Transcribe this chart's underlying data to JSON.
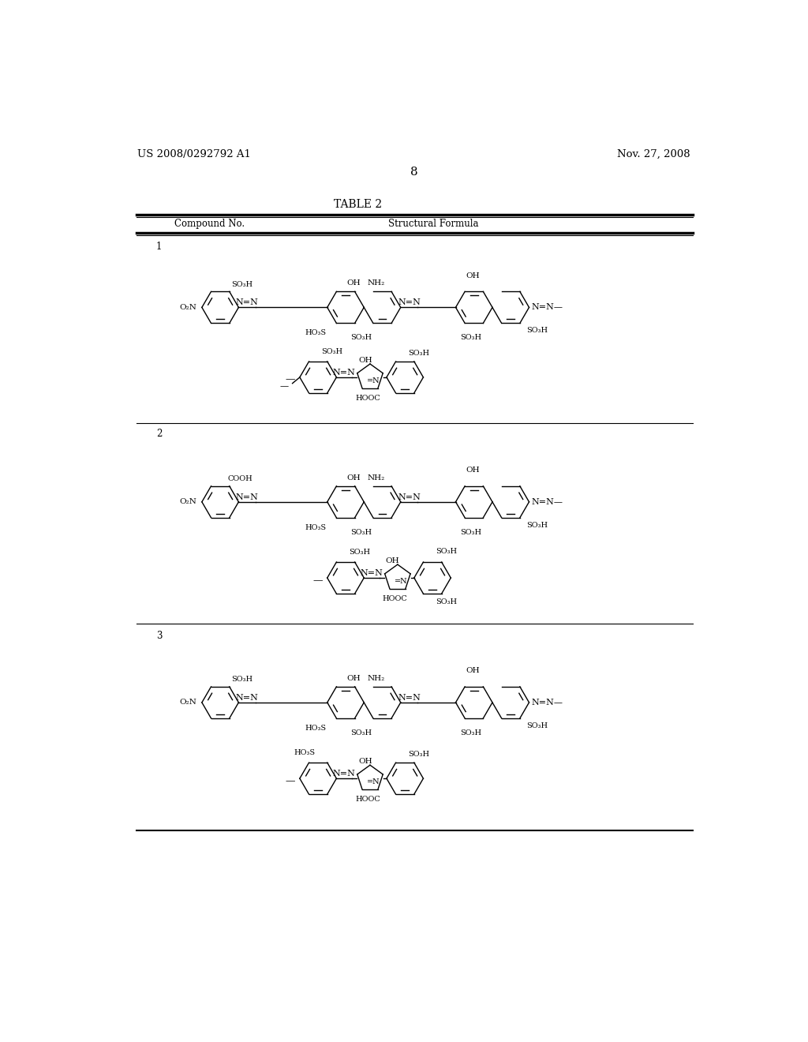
{
  "background_color": "#ffffff",
  "header_left": "US 2008/0292792 A1",
  "header_right": "Nov. 27, 2008",
  "page_number": "8",
  "table_title": "TABLE 2",
  "col1_header": "Compound No.",
  "col2_header": "Structural Formula"
}
